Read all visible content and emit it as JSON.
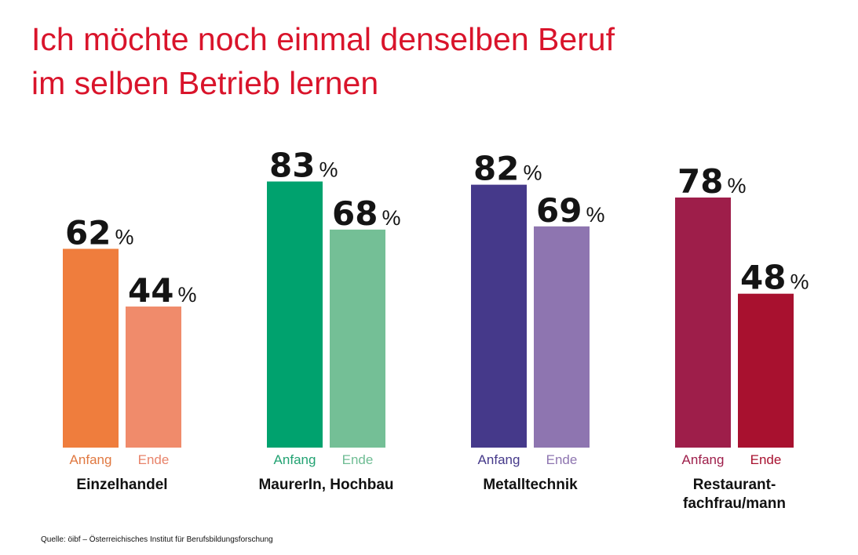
{
  "title": {
    "line1": "Ich möchte noch einmal denselben Beruf",
    "line2": "im selben Betrieb lernen"
  },
  "source": "Quelle: öibf – Österreichisches Institut für Berufsbildungsforschung",
  "chart_data": {
    "type": "bar",
    "title": "Ich möchte noch einmal denselben Beruf im selben Betrieb lernen",
    "unit": "%",
    "ylim": [
      0,
      100
    ],
    "grid": false,
    "series_names": [
      "Anfang",
      "Ende"
    ],
    "groups": [
      {
        "category": [
          "Einzelhandel"
        ],
        "labels": [
          "Anfang",
          "Ende"
        ],
        "values": [
          62,
          44
        ],
        "colors": [
          "#ef7d3d",
          "#f08b6b"
        ],
        "label_colors": [
          "#e07840",
          "#e8836a"
        ]
      },
      {
        "category": [
          "MaurerIn, Hochbau"
        ],
        "labels": [
          "Anfang",
          "Ende"
        ],
        "values": [
          83,
          68
        ],
        "colors": [
          "#00a26e",
          "#74bf96"
        ],
        "label_colors": [
          "#22a272",
          "#6fbd94"
        ]
      },
      {
        "category": [
          "Metalltechnik"
        ],
        "labels": [
          "Anfang",
          "Ende"
        ],
        "values": [
          82,
          69
        ],
        "colors": [
          "#45398a",
          "#8e75b0"
        ],
        "label_colors": [
          "#45398a",
          "#8e75b0"
        ]
      },
      {
        "category": [
          "Restaurant-",
          "fachfrau/mann"
        ],
        "labels": [
          "Anfang",
          "Ende"
        ],
        "values": [
          78,
          48
        ],
        "colors": [
          "#9e1e4a",
          "#a8112f"
        ],
        "label_colors": [
          "#9e1e4a",
          "#a8112f"
        ]
      }
    ]
  }
}
